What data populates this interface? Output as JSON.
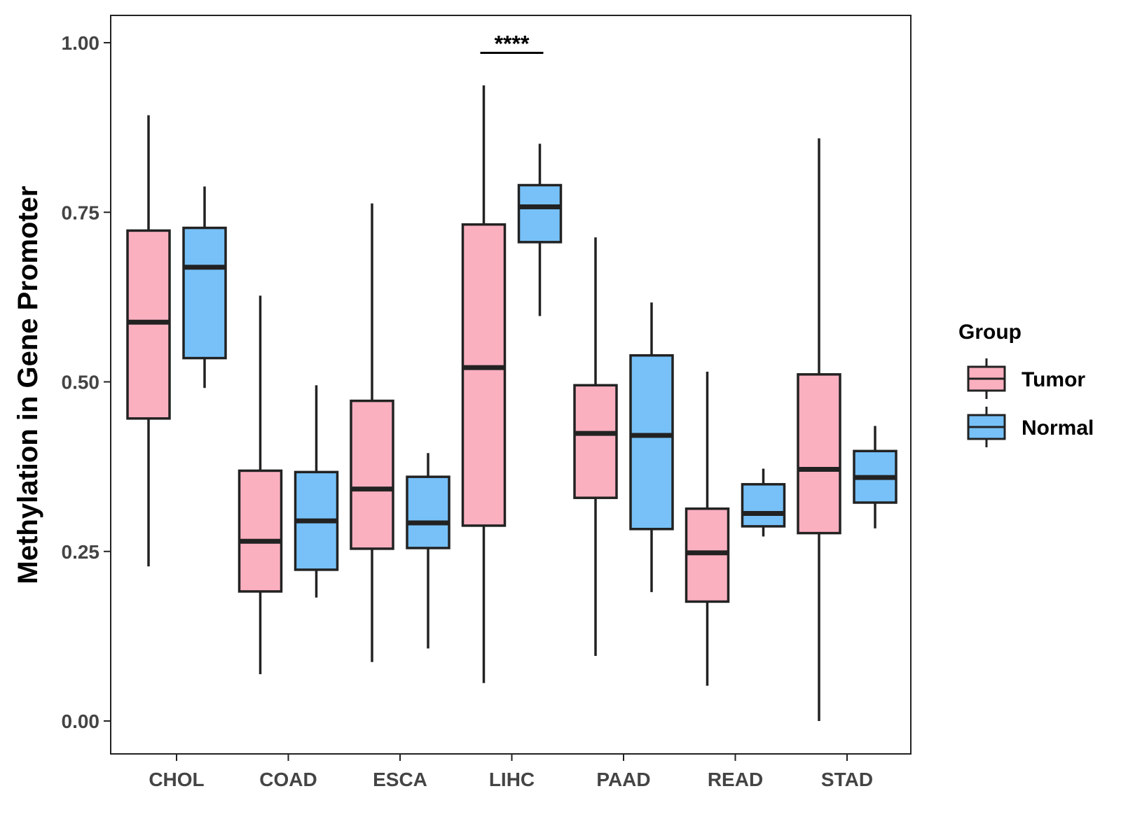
{
  "chart_data": {
    "type": "boxplot",
    "title": "",
    "xlabel": "",
    "ylabel": "Methylation in Gene Promoter",
    "ylim": [
      -0.05,
      1.04
    ],
    "yticks": [
      0.0,
      0.25,
      0.5,
      0.75,
      1.0
    ],
    "ytick_labels": [
      "0.00",
      "0.25",
      "0.50",
      "0.75",
      "1.00"
    ],
    "categories": [
      "CHOL",
      "COAD",
      "ESCA",
      "LIHC",
      "PAAD",
      "READ",
      "STAD"
    ],
    "legend": {
      "title": "Group",
      "position": "right"
    },
    "series": [
      {
        "name": "Tumor",
        "color": "#FBB0C0",
        "boxes": [
          {
            "whisker_low": 0.228,
            "q1": 0.446,
            "median": 0.588,
            "q3": 0.723,
            "whisker_high": 0.893
          },
          {
            "whisker_low": 0.069,
            "q1": 0.191,
            "median": 0.265,
            "q3": 0.369,
            "whisker_high": 0.627
          },
          {
            "whisker_low": 0.087,
            "q1": 0.254,
            "median": 0.342,
            "q3": 0.472,
            "whisker_high": 0.763
          },
          {
            "whisker_low": 0.056,
            "q1": 0.288,
            "median": 0.521,
            "q3": 0.732,
            "whisker_high": 0.937
          },
          {
            "whisker_low": 0.096,
            "q1": 0.329,
            "median": 0.424,
            "q3": 0.495,
            "whisker_high": 0.713
          },
          {
            "whisker_low": 0.052,
            "q1": 0.176,
            "median": 0.248,
            "q3": 0.313,
            "whisker_high": 0.515
          },
          {
            "whisker_low": 0.0,
            "q1": 0.277,
            "median": 0.371,
            "q3": 0.511,
            "whisker_high": 0.859
          }
        ]
      },
      {
        "name": "Normal",
        "color": "#77C1F8",
        "boxes": [
          {
            "whisker_low": 0.491,
            "q1": 0.535,
            "median": 0.669,
            "q3": 0.727,
            "whisker_high": 0.788
          },
          {
            "whisker_low": 0.182,
            "q1": 0.223,
            "median": 0.295,
            "q3": 0.367,
            "whisker_high": 0.495
          },
          {
            "whisker_low": 0.107,
            "q1": 0.255,
            "median": 0.292,
            "q3": 0.36,
            "whisker_high": 0.395
          },
          {
            "whisker_low": 0.597,
            "q1": 0.706,
            "median": 0.758,
            "q3": 0.79,
            "whisker_high": 0.851
          },
          {
            "whisker_low": 0.19,
            "q1": 0.283,
            "median": 0.421,
            "q3": 0.539,
            "whisker_high": 0.617
          },
          {
            "whisker_low": 0.272,
            "q1": 0.287,
            "median": 0.306,
            "q3": 0.349,
            "whisker_high": 0.372
          },
          {
            "whisker_low": 0.284,
            "q1": 0.322,
            "median": 0.359,
            "q3": 0.398,
            "whisker_high": 0.435
          }
        ]
      }
    ],
    "annotations": [
      {
        "category": "LIHC",
        "text": "****",
        "y": 0.985
      }
    ]
  }
}
